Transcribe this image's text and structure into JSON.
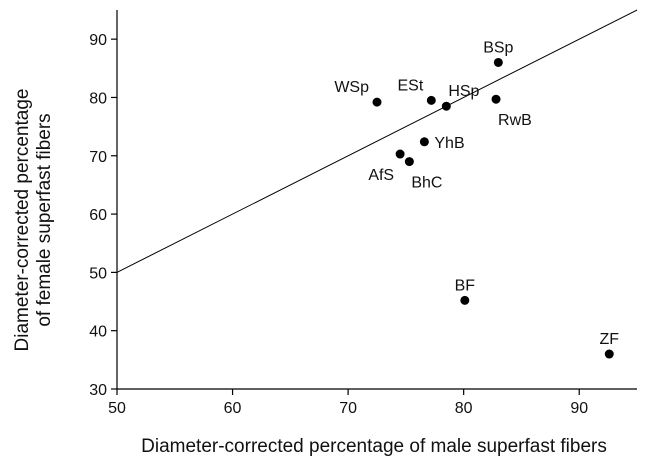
{
  "chart_data": {
    "type": "scatter",
    "xlabel": "Diameter-corrected percentage of male superfast fibers",
    "ylabel_lines": [
      "Diameter-corrected percentage",
      "of female superfast fibers"
    ],
    "xlim": [
      50,
      95
    ],
    "ylim": [
      30,
      95
    ],
    "xticks": [
      50,
      60,
      70,
      80,
      90
    ],
    "yticks": [
      30,
      40,
      50,
      60,
      70,
      80,
      90
    ],
    "grid": false,
    "reference_line": {
      "description": "y = x",
      "from": [
        50,
        50
      ],
      "to": [
        95,
        95
      ]
    },
    "points": [
      {
        "label": "BSp",
        "x": 83.0,
        "y": 86.0,
        "label_pos": "above"
      },
      {
        "label": "WSp",
        "x": 72.5,
        "y": 79.2,
        "label_pos": "above-left"
      },
      {
        "label": "ESt",
        "x": 77.2,
        "y": 79.5,
        "label_pos": "above-left"
      },
      {
        "label": "HSp",
        "x": 78.5,
        "y": 78.5,
        "label_pos": "above-right"
      },
      {
        "label": "RwB",
        "x": 82.8,
        "y": 79.7,
        "label_pos": "below-right"
      },
      {
        "label": "YhB",
        "x": 76.6,
        "y": 72.4,
        "label_pos": "right"
      },
      {
        "label": "AfS",
        "x": 74.5,
        "y": 70.3,
        "label_pos": "below-left"
      },
      {
        "label": "BhC",
        "x": 75.3,
        "y": 69.0,
        "label_pos": "below-right"
      },
      {
        "label": "BF",
        "x": 80.1,
        "y": 45.2,
        "label_pos": "above"
      },
      {
        "label": "ZF",
        "x": 92.6,
        "y": 36.0,
        "label_pos": "above"
      }
    ]
  }
}
